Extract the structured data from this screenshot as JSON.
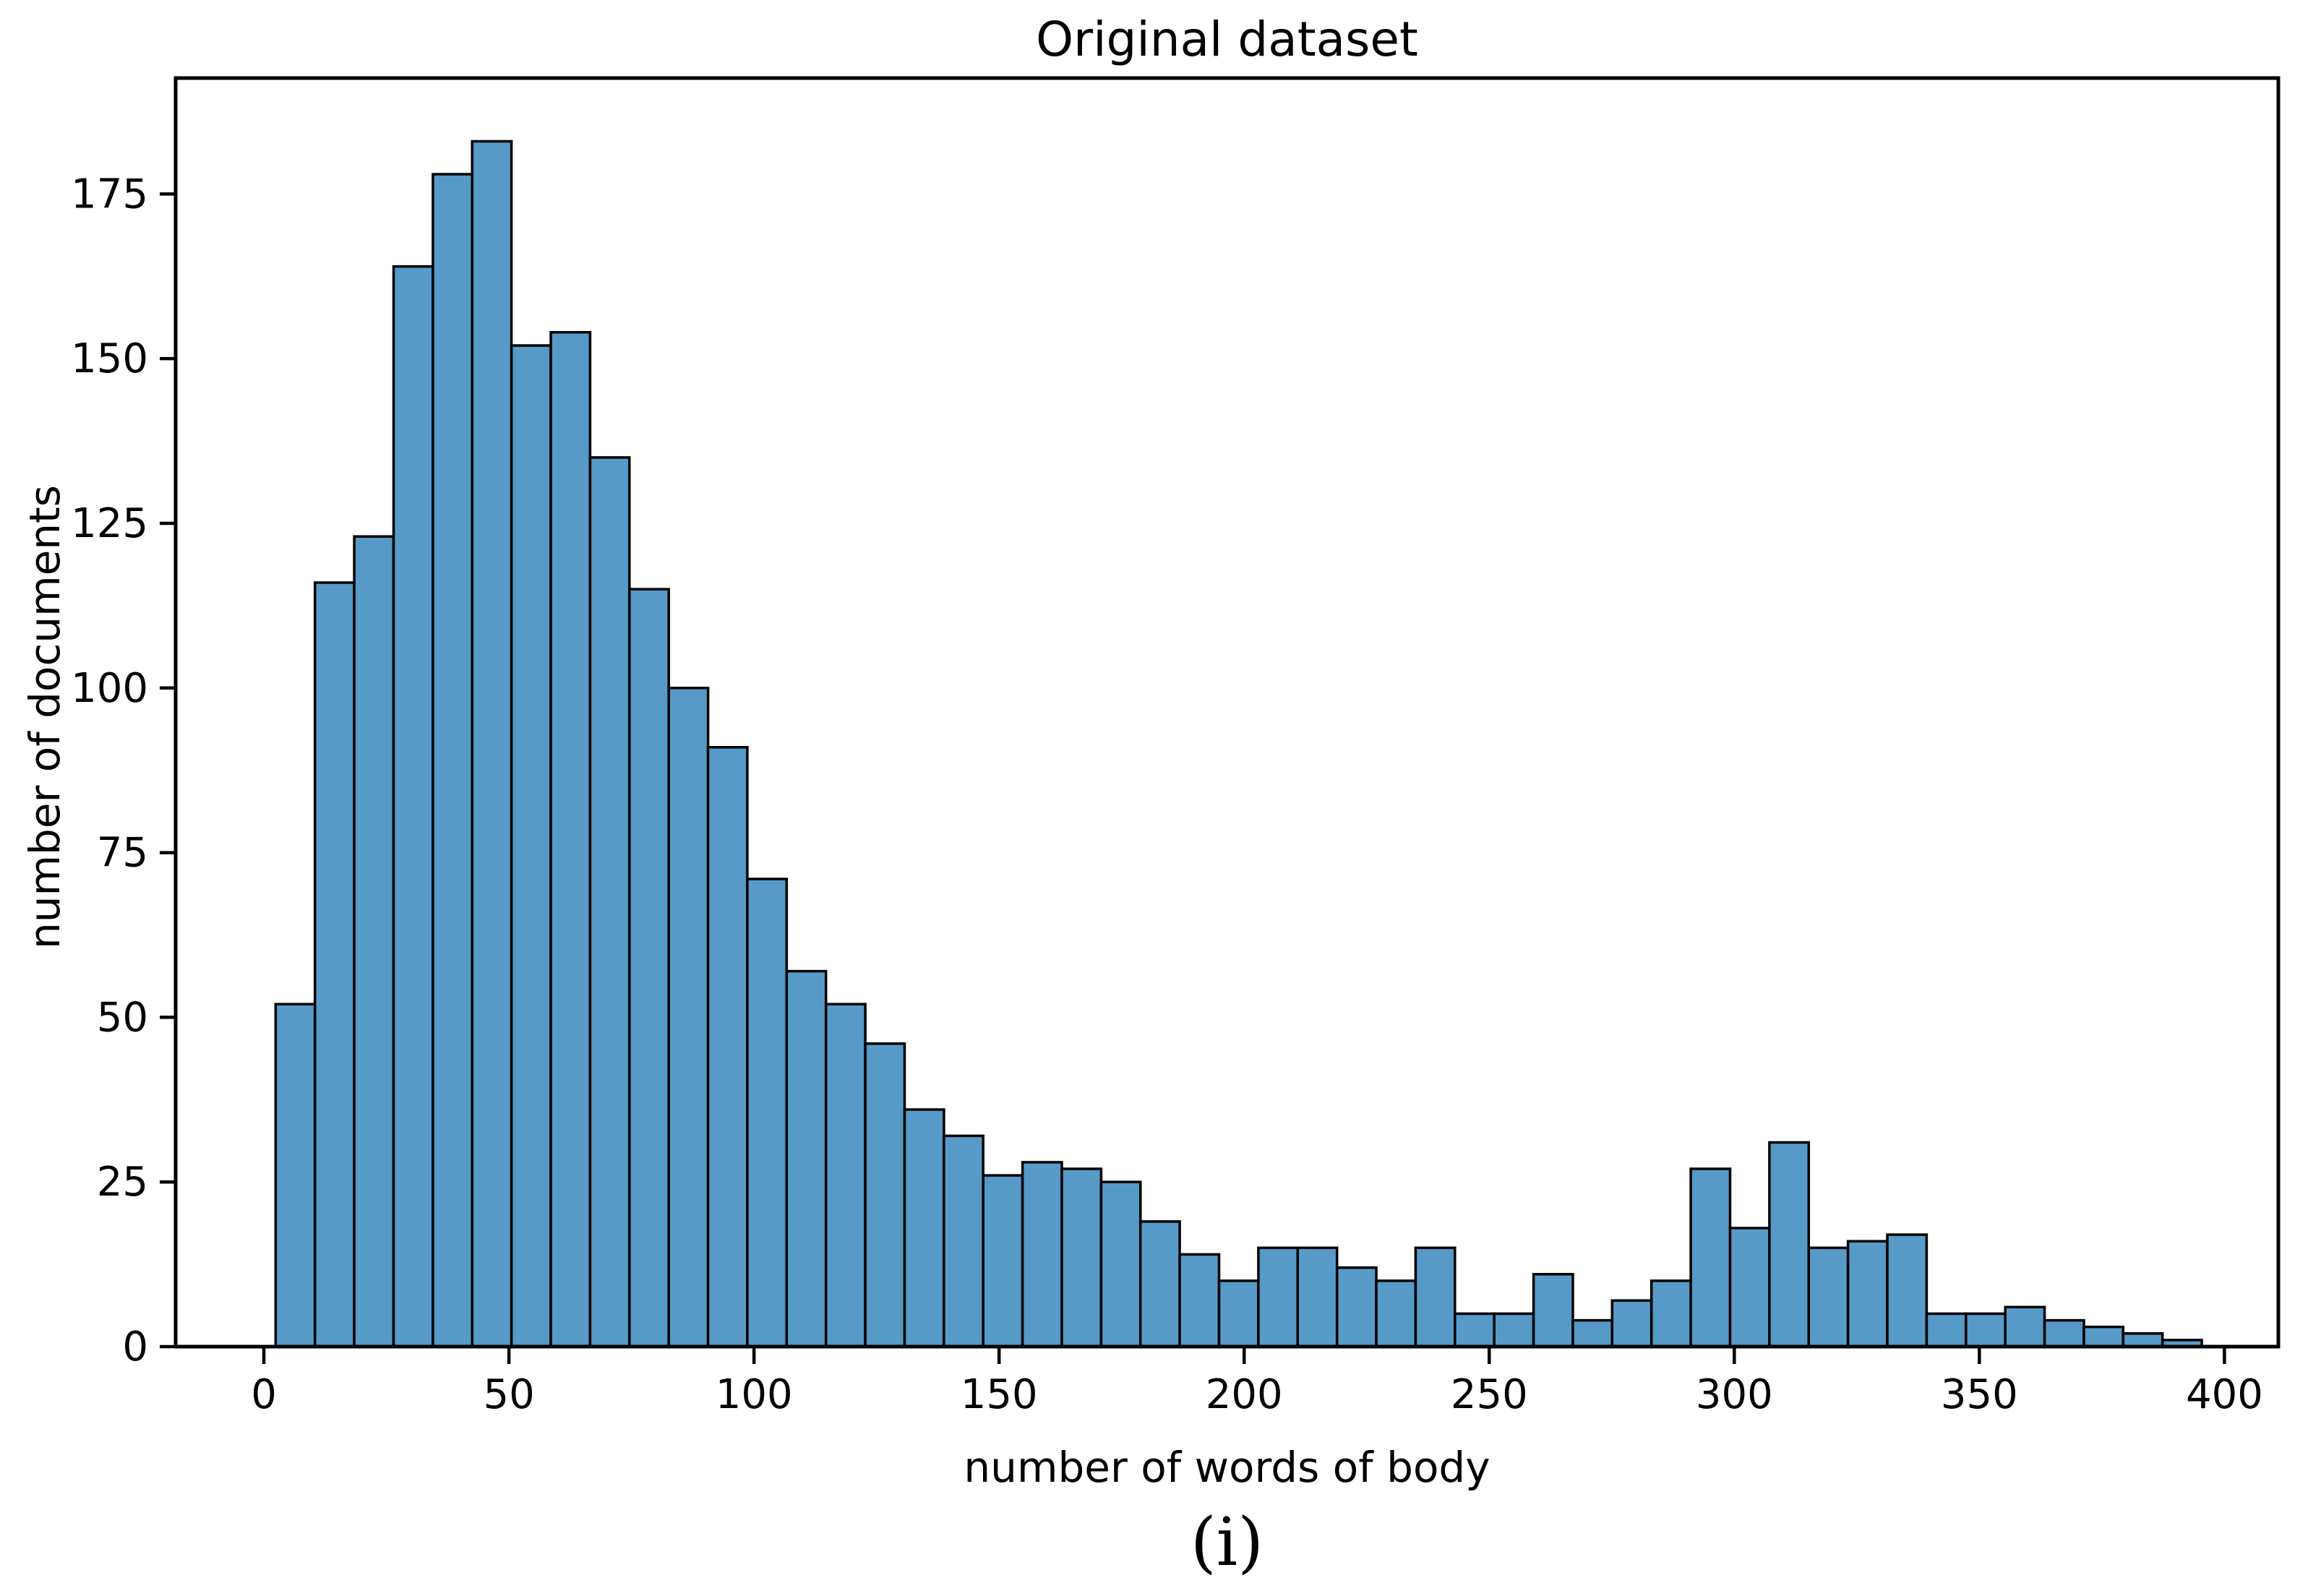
{
  "figure": {
    "title": "Original dataset",
    "caption": "(i)"
  },
  "colors": {
    "background": "#ffffff",
    "bar_fill": "#5799c7",
    "bar_edge": "#000000",
    "axis": "#000000",
    "text": "#000000"
  },
  "chart_data": {
    "type": "bar",
    "subtype": "histogram",
    "title": "Original dataset",
    "xlabel": "number of words of body",
    "ylabel": "number of documents",
    "bin_start": 2.4,
    "bin_width": 8.02,
    "values": [
      52,
      116,
      123,
      164,
      178,
      183,
      152,
      154,
      135,
      115,
      100,
      91,
      71,
      57,
      52,
      46,
      36,
      32,
      26,
      28,
      27,
      25,
      19,
      14,
      10,
      15,
      15,
      12,
      10,
      15,
      5,
      5,
      11,
      4,
      7,
      10,
      27,
      18,
      31,
      15,
      16,
      17,
      5,
      5,
      6,
      4,
      3,
      2,
      1
    ],
    "x_ticks": [
      0,
      50,
      100,
      150,
      200,
      250,
      300,
      350,
      400
    ],
    "y_ticks": [
      0,
      25,
      50,
      75,
      100,
      125,
      150,
      175
    ],
    "xlim": [
      -18,
      411
    ],
    "ylim": [
      0,
      192.6
    ],
    "grid": false,
    "legend": null
  }
}
